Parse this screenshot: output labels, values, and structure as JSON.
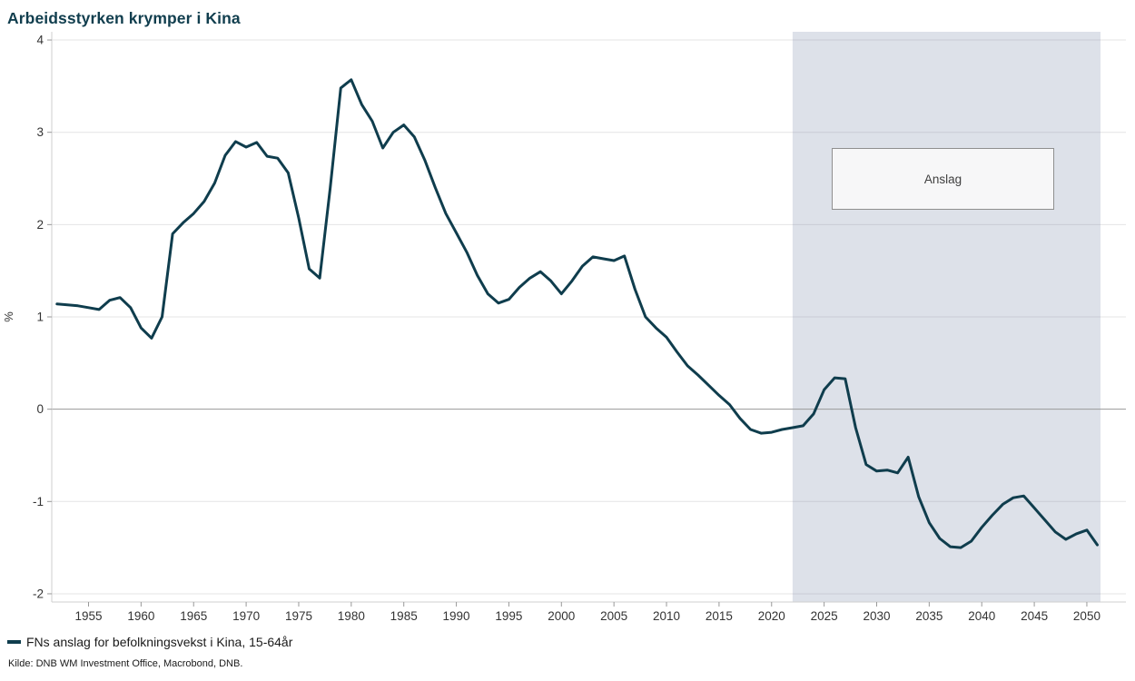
{
  "title": "Arbeidsstyrken krymper i Kina",
  "legend": {
    "label": "FNs anslag for befolkningsvekst i Kina, 15-64år"
  },
  "source": {
    "text": "Kilde: DNB WM Investment Office, Macrobond, DNB."
  },
  "forecast": {
    "label": "Anslag",
    "start_year": 2022
  },
  "colors": {
    "line": "#0f3d4d",
    "title": "#113e4e",
    "band": "#dde1e9",
    "grid": "rgba(130,130,140,0.22)",
    "zero_line": "#999999",
    "axis": "#cfcfcf",
    "tick": "#999999",
    "tick_text": "#333333"
  },
  "chart_data": {
    "type": "line",
    "title": "Arbeidsstyrken krymper i Kina",
    "xlabel": "",
    "ylabel": "%",
    "grid": "horizontal",
    "legend_position": "bottom-left",
    "xlim": [
      1951.5,
      2051.3
    ],
    "ylim": [
      -2.089,
      4.089
    ],
    "y_ticks": [
      4,
      3,
      2,
      1,
      0,
      -1,
      -2
    ],
    "x_ticks": [
      1955,
      1960,
      1965,
      1970,
      1975,
      1980,
      1985,
      1990,
      1995,
      2000,
      2005,
      2010,
      2015,
      2020,
      2025,
      2030,
      2035,
      2040,
      2045,
      2050
    ],
    "forecast_band": {
      "from": 2022,
      "to": 2051.3,
      "label": "Anslag"
    },
    "x": [
      1952,
      1953,
      1954,
      1955,
      1956,
      1957,
      1958,
      1959,
      1960,
      1961,
      1962,
      1963,
      1964,
      1965,
      1966,
      1967,
      1968,
      1969,
      1970,
      1971,
      1972,
      1973,
      1974,
      1975,
      1976,
      1977,
      1978,
      1979,
      1980,
      1981,
      1982,
      1983,
      1984,
      1985,
      1986,
      1987,
      1988,
      1989,
      1990,
      1991,
      1992,
      1993,
      1994,
      1995,
      1996,
      1997,
      1998,
      1999,
      2000,
      2001,
      2002,
      2003,
      2004,
      2005,
      2006,
      2007,
      2008,
      2009,
      2010,
      2011,
      2012,
      2013,
      2014,
      2015,
      2016,
      2017,
      2018,
      2019,
      2020,
      2021,
      2022,
      2023,
      2024,
      2025,
      2026,
      2027,
      2028,
      2029,
      2030,
      2031,
      2032,
      2033,
      2034,
      2035,
      2036,
      2037,
      2038,
      2039,
      2040,
      2041,
      2042,
      2043,
      2044,
      2045,
      2046,
      2047,
      2048,
      2049,
      2050,
      2051
    ],
    "series": [
      {
        "name": "FNs anslag for befolkningsvekst i Kina, 15-64år",
        "values": [
          1.14,
          1.13,
          1.12,
          1.1,
          1.08,
          1.18,
          1.21,
          1.1,
          0.88,
          0.77,
          1.0,
          1.9,
          2.02,
          2.12,
          2.25,
          2.45,
          2.75,
          2.9,
          2.84,
          2.89,
          2.74,
          2.72,
          2.56,
          2.07,
          1.52,
          1.42,
          2.4,
          3.48,
          3.57,
          3.3,
          3.12,
          2.83,
          3.0,
          3.08,
          2.95,
          2.7,
          2.4,
          2.12,
          1.91,
          1.7,
          1.45,
          1.25,
          1.15,
          1.19,
          1.32,
          1.42,
          1.49,
          1.39,
          1.25,
          1.39,
          1.55,
          1.65,
          1.63,
          1.61,
          1.66,
          1.3,
          1.0,
          0.88,
          0.78,
          0.62,
          0.47,
          0.37,
          0.26,
          0.15,
          0.05,
          -0.1,
          -0.22,
          -0.26,
          -0.25,
          -0.22,
          -0.2,
          -0.18,
          -0.05,
          0.21,
          0.34,
          0.33,
          -0.2,
          -0.6,
          -0.67,
          -0.66,
          -0.69,
          -0.52,
          -0.95,
          -1.23,
          -1.4,
          -1.49,
          -1.5,
          -1.43,
          -1.28,
          -1.15,
          -1.03,
          -0.96,
          -0.94,
          -1.07,
          -1.2,
          -1.33,
          -1.41,
          -1.35,
          -1.31,
          -1.47
        ]
      }
    ]
  }
}
